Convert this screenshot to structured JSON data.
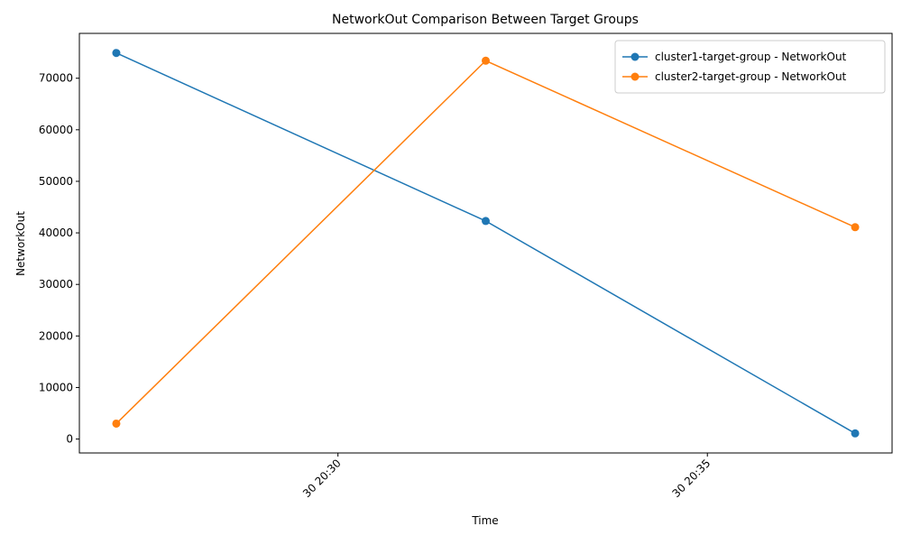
{
  "chart_data": {
    "type": "line",
    "title": "NetworkOut Comparison Between Target Groups",
    "xlabel": "Time",
    "ylabel": "NetworkOut",
    "x": [
      "30 20:27",
      "30 20:32",
      "30 20:37"
    ],
    "x_minutes": [
      27,
      32,
      37
    ],
    "xlim_minutes": [
      26.5,
      37.5
    ],
    "xticks": [
      {
        "minute": 30,
        "label": "30 20:30"
      },
      {
        "minute": 35,
        "label": "30 20:35"
      }
    ],
    "ylim": [
      -2700,
      78700
    ],
    "yticks": [
      0,
      10000,
      20000,
      30000,
      40000,
      50000,
      60000,
      70000
    ],
    "grid": false,
    "legend_position": "top-right",
    "series": [
      {
        "name": "cluster1-target-group - NetworkOut",
        "color": "#1f77b4",
        "values": [
          74900,
          42300,
          1100
        ]
      },
      {
        "name": "cluster2-target-group - NetworkOut",
        "color": "#ff7f0e",
        "values": [
          3000,
          73400,
          41100
        ]
      }
    ]
  }
}
